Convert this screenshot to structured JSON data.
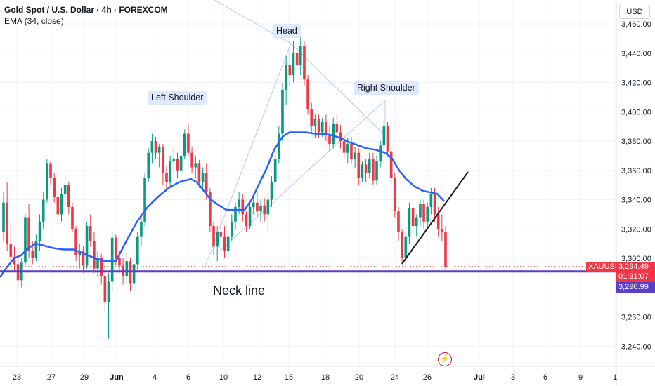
{
  "header": {
    "symbol": "Gold Spot / U.S. Dollar · 4h · FOREXCOM",
    "indicator": "EMA (34, close)",
    "currency_button": "USD"
  },
  "annotations": {
    "head": "Head",
    "left_shoulder": "Left Shoulder",
    "right_shoulder": "Right Shoulder",
    "neck_line": "Neck line"
  },
  "price_labels": {
    "ticker": "XAUUSD",
    "last_price": "3,294.49",
    "countdown": "01:31:07",
    "neckline_price": "3,290.99"
  },
  "colors": {
    "up": "#089981",
    "down": "#f23645",
    "ema": "#2962ff",
    "neckline": "#5b3fc9",
    "grid": "#f0f3fa",
    "annotation_bg": "#dfe9fb"
  },
  "chart_data": {
    "type": "candlestick",
    "title": "Gold Spot / U.S. Dollar · 4h · FOREXCOM",
    "ylim": [
      3230,
      3470
    ],
    "y_ticks": [
      "3,460.00",
      "3,440.00",
      "3,420.00",
      "3,400.00",
      "3,380.00",
      "3,360.00",
      "3,340.00",
      "3,320.00",
      "3,300.00",
      "3,260.00",
      "3,240.00"
    ],
    "x_ticks": [
      "23",
      "27",
      "29",
      "Jun",
      "4",
      "6",
      "10",
      "12",
      "15",
      "18",
      "20",
      "24",
      "26",
      "Jul",
      "3",
      "6",
      "9",
      "1"
    ],
    "ohlc": [
      [
        3318,
        3345,
        3312,
        3338
      ],
      [
        3338,
        3352,
        3305,
        3310
      ],
      [
        3310,
        3325,
        3296,
        3301
      ],
      [
        3301,
        3308,
        3291,
        3296
      ],
      [
        3296,
        3303,
        3278,
        3285
      ],
      [
        3285,
        3300,
        3280,
        3297
      ],
      [
        3297,
        3330,
        3295,
        3328
      ],
      [
        3328,
        3337,
        3300,
        3305
      ],
      [
        3305,
        3312,
        3296,
        3300
      ],
      [
        3300,
        3316,
        3298,
        3312
      ],
      [
        3312,
        3330,
        3305,
        3325
      ],
      [
        3325,
        3345,
        3320,
        3340
      ],
      [
        3340,
        3368,
        3338,
        3365
      ],
      [
        3365,
        3366,
        3350,
        3355
      ],
      [
        3355,
        3358,
        3338,
        3342
      ],
      [
        3342,
        3346,
        3325,
        3330
      ],
      [
        3330,
        3348,
        3325,
        3344
      ],
      [
        3344,
        3357,
        3340,
        3350
      ],
      [
        3350,
        3352,
        3330,
        3335
      ],
      [
        3335,
        3338,
        3318,
        3320
      ],
      [
        3320,
        3322,
        3298,
        3302
      ],
      [
        3302,
        3310,
        3293,
        3305
      ],
      [
        3305,
        3308,
        3290,
        3295
      ],
      [
        3295,
        3325,
        3293,
        3322
      ],
      [
        3322,
        3330,
        3308,
        3312
      ],
      [
        3312,
        3318,
        3290,
        3293
      ],
      [
        3293,
        3305,
        3288,
        3300
      ],
      [
        3300,
        3303,
        3282,
        3288
      ],
      [
        3288,
        3293,
        3263,
        3270
      ],
      [
        3270,
        3290,
        3245,
        3284
      ],
      [
        3284,
        3318,
        3278,
        3314
      ],
      [
        3314,
        3316,
        3295,
        3300
      ],
      [
        3300,
        3305,
        3290,
        3295
      ],
      [
        3295,
        3300,
        3282,
        3288
      ],
      [
        3288,
        3303,
        3283,
        3298
      ],
      [
        3298,
        3300,
        3278,
        3283
      ],
      [
        3283,
        3302,
        3275,
        3296
      ],
      [
        3296,
        3318,
        3292,
        3315
      ],
      [
        3315,
        3330,
        3308,
        3325
      ],
      [
        3325,
        3358,
        3322,
        3355
      ],
      [
        3355,
        3375,
        3352,
        3372
      ],
      [
        3372,
        3385,
        3365,
        3380
      ],
      [
        3380,
        3383,
        3368,
        3372
      ],
      [
        3372,
        3378,
        3362,
        3376
      ],
      [
        3376,
        3378,
        3350,
        3358
      ],
      [
        3358,
        3363,
        3345,
        3352
      ],
      [
        3352,
        3370,
        3348,
        3366
      ],
      [
        3366,
        3375,
        3360,
        3368
      ],
      [
        3368,
        3372,
        3355,
        3360
      ],
      [
        3360,
        3372,
        3356,
        3370
      ],
      [
        3370,
        3388,
        3368,
        3385
      ],
      [
        3385,
        3392,
        3370,
        3372
      ],
      [
        3372,
        3376,
        3358,
        3362
      ],
      [
        3362,
        3370,
        3355,
        3365
      ],
      [
        3365,
        3367,
        3348,
        3352
      ],
      [
        3352,
        3362,
        3346,
        3358
      ],
      [
        3358,
        3365,
        3340,
        3345
      ],
      [
        3345,
        3348,
        3318,
        3322
      ],
      [
        3322,
        3325,
        3302,
        3308
      ],
      [
        3308,
        3322,
        3298,
        3318
      ],
      [
        3318,
        3330,
        3312,
        3315
      ],
      [
        3315,
        3322,
        3300,
        3305
      ],
      [
        3305,
        3318,
        3302,
        3315
      ],
      [
        3315,
        3330,
        3312,
        3325
      ],
      [
        3325,
        3338,
        3320,
        3335
      ],
      [
        3335,
        3345,
        3330,
        3340
      ],
      [
        3340,
        3344,
        3325,
        3330
      ],
      [
        3330,
        3332,
        3318,
        3322
      ],
      [
        3322,
        3338,
        3320,
        3335
      ],
      [
        3335,
        3342,
        3330,
        3338
      ],
      [
        3338,
        3345,
        3328,
        3332
      ],
      [
        3332,
        3340,
        3325,
        3336
      ],
      [
        3336,
        3341,
        3325,
        3330
      ],
      [
        3330,
        3345,
        3318,
        3340
      ],
      [
        3340,
        3356,
        3335,
        3352
      ],
      [
        3352,
        3372,
        3348,
        3368
      ],
      [
        3368,
        3390,
        3365,
        3385
      ],
      [
        3385,
        3420,
        3380,
        3415
      ],
      [
        3415,
        3438,
        3405,
        3432
      ],
      [
        3432,
        3442,
        3418,
        3425
      ],
      [
        3425,
        3448,
        3420,
        3440
      ],
      [
        3440,
        3446,
        3428,
        3432
      ],
      [
        3432,
        3451,
        3425,
        3445
      ],
      [
        3445,
        3448,
        3418,
        3422
      ],
      [
        3422,
        3425,
        3398,
        3402
      ],
      [
        3402,
        3406,
        3385,
        3390
      ],
      [
        3390,
        3398,
        3382,
        3395
      ],
      [
        3395,
        3398,
        3382,
        3386
      ],
      [
        3386,
        3396,
        3383,
        3393
      ],
      [
        3393,
        3398,
        3380,
        3384
      ],
      [
        3384,
        3390,
        3373,
        3378
      ],
      [
        3378,
        3396,
        3375,
        3392
      ],
      [
        3392,
        3398,
        3382,
        3386
      ],
      [
        3386,
        3391,
        3375,
        3380
      ],
      [
        3380,
        3384,
        3368,
        3372
      ],
      [
        3372,
        3382,
        3365,
        3378
      ],
      [
        3378,
        3383,
        3365,
        3368
      ],
      [
        3368,
        3376,
        3362,
        3372
      ],
      [
        3372,
        3375,
        3350,
        3355
      ],
      [
        3355,
        3366,
        3352,
        3364
      ],
      [
        3364,
        3368,
        3352,
        3358
      ],
      [
        3358,
        3372,
        3355,
        3368
      ],
      [
        3368,
        3372,
        3350,
        3353
      ],
      [
        3353,
        3370,
        3350,
        3366
      ],
      [
        3366,
        3380,
        3362,
        3377
      ],
      [
        3377,
        3394,
        3372,
        3390
      ],
      [
        3390,
        3393,
        3370,
        3373
      ],
      [
        3373,
        3376,
        3350,
        3355
      ],
      [
        3355,
        3358,
        3328,
        3332
      ],
      [
        3332,
        3335,
        3312,
        3318
      ],
      [
        3318,
        3320,
        3296,
        3300
      ],
      [
        3300,
        3318,
        3296,
        3315
      ],
      [
        3315,
        3338,
        3310,
        3334
      ],
      [
        3334,
        3337,
        3318,
        3322
      ],
      [
        3322,
        3330,
        3315,
        3328
      ],
      [
        3328,
        3340,
        3322,
        3337
      ],
      [
        3337,
        3340,
        3320,
        3325
      ],
      [
        3325,
        3338,
        3320,
        3335
      ],
      [
        3335,
        3348,
        3330,
        3344
      ],
      [
        3344,
        3348,
        3325,
        3330
      ],
      [
        3330,
        3335,
        3315,
        3320
      ],
      [
        3320,
        3330,
        3312,
        3318
      ],
      [
        3318,
        3322,
        3293,
        3294
      ]
    ],
    "ema": {
      "name": "EMA (34, close)",
      "values": [
        [
          0,
          3287
        ],
        [
          10,
          3294
        ],
        [
          20,
          3300
        ],
        [
          30,
          3302
        ],
        [
          38,
          3306
        ],
        [
          50,
          3310
        ],
        [
          60,
          3309
        ],
        [
          75,
          3307
        ],
        [
          90,
          3306
        ],
        [
          105,
          3306
        ],
        [
          120,
          3303
        ],
        [
          135,
          3300
        ],
        [
          150,
          3298
        ],
        [
          165,
          3298
        ],
        [
          180,
          3312
        ],
        [
          195,
          3325
        ],
        [
          210,
          3335
        ],
        [
          225,
          3342
        ],
        [
          240,
          3348
        ],
        [
          255,
          3352
        ],
        [
          262,
          3353
        ],
        [
          272,
          3354
        ],
        [
          280,
          3352
        ],
        [
          290,
          3346
        ],
        [
          300,
          3340
        ],
        [
          312,
          3336
        ],
        [
          322,
          3333
        ],
        [
          335,
          3333
        ],
        [
          348,
          3333
        ],
        [
          358,
          3340
        ],
        [
          368,
          3350
        ],
        [
          380,
          3362
        ],
        [
          390,
          3374
        ],
        [
          402,
          3383
        ],
        [
          412,
          3386
        ],
        [
          422,
          3386
        ],
        [
          435,
          3386
        ],
        [
          448,
          3385
        ],
        [
          460,
          3385
        ],
        [
          472,
          3384
        ],
        [
          485,
          3382
        ],
        [
          498,
          3379
        ],
        [
          510,
          3377
        ],
        [
          522,
          3375
        ],
        [
          535,
          3374
        ],
        [
          548,
          3372
        ],
        [
          558,
          3368
        ],
        [
          568,
          3360
        ],
        [
          578,
          3354
        ],
        [
          590,
          3349
        ],
        [
          602,
          3346
        ],
        [
          612,
          3345
        ],
        [
          622,
          3344
        ],
        [
          632,
          3339
        ]
      ]
    },
    "neckline": 3290.99,
    "last_price": 3294.49
  }
}
